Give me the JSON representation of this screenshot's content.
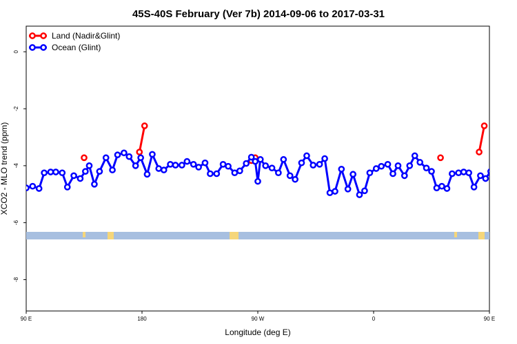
{
  "chart_data": {
    "type": "line",
    "title": "45S-40S February (Ver 7b)   2014-09-06 to 2017-03-31",
    "xlabel": "Longitude (deg E)",
    "ylabel": "XCO2 - MLO trend (ppm)",
    "xlim": [
      90,
      450
    ],
    "ylim": [
      -9.1,
      0.9
    ],
    "x_ticks": [
      {
        "value": 90,
        "label": "90 E"
      },
      {
        "value": 180,
        "label": "180"
      },
      {
        "value": 270,
        "label": "90 W"
      },
      {
        "value": 360,
        "label": "0"
      },
      {
        "value": 450,
        "label": "90 E"
      },
      {
        "value": 540,
        "label": "180"
      }
    ],
    "y_ticks": [
      {
        "value": 0,
        "label": "0"
      },
      {
        "value": -2,
        "label": "-2"
      },
      {
        "value": -4,
        "label": "-4"
      },
      {
        "value": -6,
        "label": "-6"
      },
      {
        "value": -8,
        "label": "-8"
      }
    ],
    "legend": {
      "position": "top-left"
    },
    "grid": false,
    "series": [
      {
        "name": "Land (Nadir&Glint)",
        "color": "#ff0000",
        "segments": [
          [
            [
              135,
              -3.72
            ]
          ],
          [
            [
              178,
              -3.52
            ],
            [
              182,
              -2.6
            ]
          ],
          [
            [
              265,
              -3.82
            ],
            [
              268,
              -3.72
            ]
          ],
          [
            [
              412,
              -3.72
            ]
          ],
          [
            [
              442,
              -3.52
            ],
            [
              446,
              -2.6
            ]
          ]
        ]
      },
      {
        "name": "Ocean (Glint)",
        "color": "#0000ff",
        "segments": [
          [
            [
              90,
              -4.78
            ],
            [
              95,
              -4.72
            ],
            [
              100,
              -4.8
            ],
            [
              104,
              -4.25
            ],
            [
              109,
              -4.22
            ],
            [
              113,
              -4.22
            ],
            [
              118,
              -4.25
            ],
            [
              122,
              -4.75
            ],
            [
              127,
              -4.35
            ],
            [
              132,
              -4.45
            ],
            [
              136,
              -4.2
            ],
            [
              139,
              -4.0
            ],
            [
              143,
              -4.65
            ],
            [
              147,
              -4.2
            ],
            [
              152,
              -3.72
            ],
            [
              157,
              -4.15
            ],
            [
              161,
              -3.62
            ],
            [
              166,
              -3.55
            ],
            [
              170,
              -3.68
            ],
            [
              175,
              -4.0
            ],
            [
              179,
              -3.72
            ],
            [
              184,
              -4.3
            ],
            [
              188,
              -3.6
            ],
            [
              193,
              -4.1
            ],
            [
              197,
              -4.15
            ],
            [
              202,
              -3.95
            ],
            [
              206,
              -3.98
            ],
            [
              211,
              -3.98
            ],
            [
              215,
              -3.85
            ],
            [
              220,
              -3.95
            ],
            [
              224,
              -4.05
            ],
            [
              229,
              -3.9
            ],
            [
              233,
              -4.28
            ],
            [
              238,
              -4.28
            ],
            [
              243,
              -3.95
            ],
            [
              247,
              -4.02
            ],
            [
              252,
              -4.25
            ],
            [
              256,
              -4.18
            ],
            [
              261,
              -3.92
            ],
            [
              265,
              -3.7
            ],
            [
              268,
              -3.85
            ],
            [
              270,
              -4.55
            ],
            [
              272,
              -3.78
            ],
            [
              276,
              -4.0
            ],
            [
              281,
              -4.08
            ],
            [
              286,
              -4.25
            ],
            [
              290,
              -3.78
            ],
            [
              295,
              -4.35
            ],
            [
              299,
              -4.48
            ],
            [
              304,
              -3.9
            ],
            [
              308,
              -3.65
            ],
            [
              313,
              -3.98
            ],
            [
              318,
              -3.95
            ],
            [
              322,
              -3.75
            ],
            [
              326,
              -4.95
            ],
            [
              330,
              -4.9
            ],
            [
              335,
              -4.12
            ],
            [
              340,
              -4.82
            ],
            [
              344,
              -4.3
            ],
            [
              349,
              -5.02
            ],
            [
              353,
              -4.88
            ],
            [
              357,
              -4.25
            ],
            [
              362,
              -4.1
            ],
            [
              366,
              -4.02
            ],
            [
              371,
              -3.95
            ],
            [
              375,
              -4.28
            ],
            [
              379,
              -4.0
            ],
            [
              384,
              -4.35
            ],
            [
              388,
              -4.0
            ],
            [
              392,
              -3.65
            ],
            [
              396,
              -3.88
            ],
            [
              401,
              -4.08
            ],
            [
              405,
              -4.2
            ],
            [
              409,
              -4.78
            ],
            [
              413,
              -4.72
            ],
            [
              417,
              -4.8
            ],
            [
              421,
              -4.28
            ],
            [
              426,
              -4.25
            ],
            [
              430,
              -4.22
            ],
            [
              434,
              -4.25
            ],
            [
              438,
              -4.75
            ],
            [
              443,
              -4.35
            ],
            [
              447,
              -4.45
            ],
            [
              451,
              -4.2
            ],
            [
              454,
              -4.0
            ],
            [
              458,
              -4.65
            ],
            [
              462,
              -4.2
            ],
            [
              466,
              -3.72
            ],
            [
              470,
              -4.15
            ],
            [
              474,
              -3.62
            ],
            [
              479,
              -3.55
            ]
          ]
        ]
      }
    ]
  }
}
